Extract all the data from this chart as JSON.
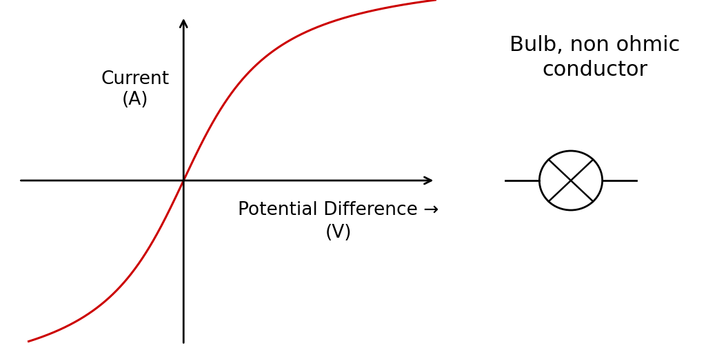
{
  "background_color": "#ffffff",
  "curve_color": "#cc0000",
  "axis_color": "#000000",
  "curve_linewidth": 2.2,
  "axis_linewidth": 2.0,
  "ylabel_text": "Current\n(A)",
  "xlabel_text": "Potential Difference →",
  "xlabel_text2": "(V)",
  "legend_title": "Bulb, non ohmic\nconductor",
  "legend_fontsize": 22,
  "label_fontsize": 19,
  "arrow_color": "#000000"
}
